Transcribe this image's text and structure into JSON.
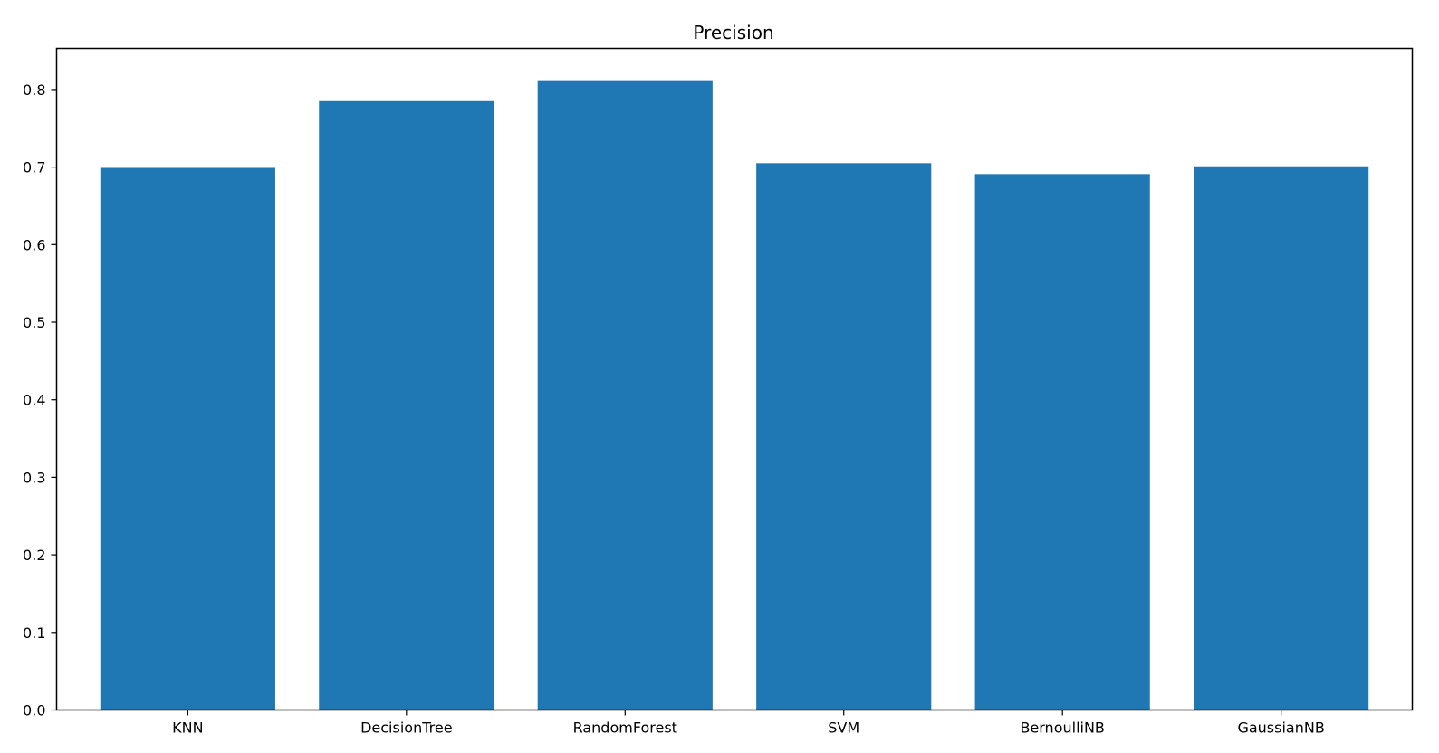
{
  "chart_data": {
    "type": "bar",
    "title": "Precision",
    "xlabel": "",
    "ylabel": "",
    "categories": [
      "KNN",
      "DecisionTree",
      "RandomForest",
      "SVM",
      "BernoulliNB",
      "GaussianNB"
    ],
    "values": [
      0.699,
      0.785,
      0.812,
      0.705,
      0.691,
      0.701
    ],
    "ylim": [
      0,
      0.853
    ],
    "yticks": [
      "0.0",
      "0.1",
      "0.2",
      "0.3",
      "0.4",
      "0.5",
      "0.6",
      "0.7",
      "0.8"
    ],
    "bar_color": "#1f77b4",
    "grid": false,
    "legend": "none"
  }
}
